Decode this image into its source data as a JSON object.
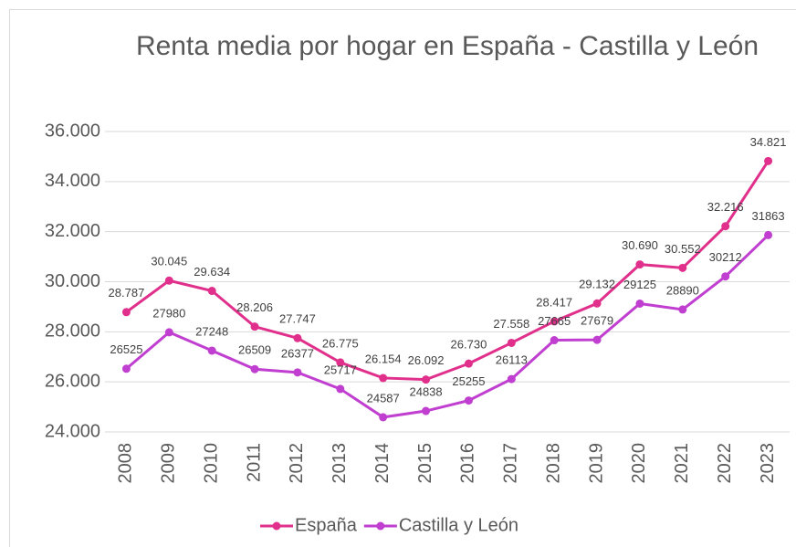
{
  "chart_data": {
    "type": "line",
    "title": "Renta media por hogar en España - Castilla y León",
    "categories": [
      "2008",
      "2009",
      "2010",
      "2011",
      "2012",
      "2013",
      "2014",
      "2015",
      "2016",
      "2017",
      "2018",
      "2019",
      "2020",
      "2021",
      "2022",
      "2023"
    ],
    "series": [
      {
        "name": "España",
        "color": "#e0308c",
        "values": [
          28787,
          30045,
          29634,
          28206,
          27747,
          26775,
          26154,
          26092,
          26730,
          27558,
          28417,
          29132,
          30690,
          30552,
          32216,
          34821
        ],
        "value_labels": [
          "28.787",
          "30.045",
          "29.634",
          "28.206",
          "27.747",
          "26.775",
          "26.154",
          "26.092",
          "26.730",
          "27.558",
          "28.417",
          "29.132",
          "30.690",
          "30.552",
          "32.216",
          "34.821"
        ]
      },
      {
        "name": "Castilla y León",
        "color": "#c03fd0",
        "values": [
          26525,
          27980,
          27248,
          26509,
          26377,
          25717,
          24587,
          24838,
          25255,
          26113,
          27665,
          27679,
          29125,
          28890,
          30212,
          31863
        ]
      }
    ],
    "ylim": [
      24000,
      36000
    ],
    "yticks": [
      {
        "value": 24000,
        "label": "24.000"
      },
      {
        "value": 26000,
        "label": "26.000"
      },
      {
        "value": 28000,
        "label": "28.000"
      },
      {
        "value": 30000,
        "label": "30.000"
      },
      {
        "value": 32000,
        "label": "32.000"
      },
      {
        "value": 34000,
        "label": "34.000"
      },
      {
        "value": 36000,
        "label": "36.000"
      }
    ],
    "grid": true,
    "legend": "bottom"
  }
}
